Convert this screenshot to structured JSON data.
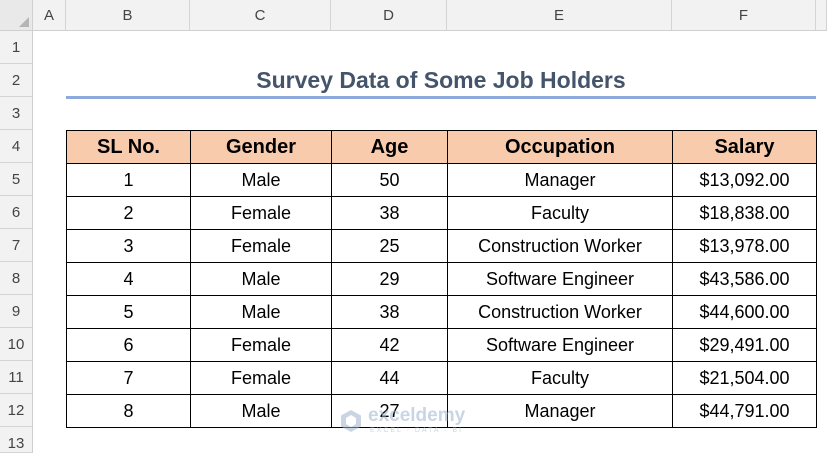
{
  "columns": [
    "A",
    "B",
    "C",
    "D",
    "E",
    "F"
  ],
  "rows": [
    "1",
    "2",
    "3",
    "4",
    "5",
    "6",
    "7",
    "8",
    "9",
    "10",
    "11",
    "12",
    "13"
  ],
  "title": "Survey Data of Some Job Holders",
  "table": {
    "headers": [
      "SL No.",
      "Gender",
      "Age",
      "Occupation",
      "Salary"
    ],
    "rows": [
      [
        "1",
        "Male",
        "50",
        "Manager",
        "$13,092.00"
      ],
      [
        "2",
        "Female",
        "38",
        "Faculty",
        "$18,838.00"
      ],
      [
        "3",
        "Female",
        "25",
        "Construction Worker",
        "$13,978.00"
      ],
      [
        "4",
        "Male",
        "29",
        "Software Engineer",
        "$43,586.00"
      ],
      [
        "5",
        "Male",
        "38",
        "Construction Worker",
        "$44,600.00"
      ],
      [
        "6",
        "Female",
        "42",
        "Software Engineer",
        "$29,491.00"
      ],
      [
        "7",
        "Female",
        "44",
        "Faculty",
        "$21,504.00"
      ],
      [
        "8",
        "Male",
        "27",
        "Manager",
        "$44,791.00"
      ]
    ]
  },
  "watermark": {
    "name": "exceldemy",
    "tagline": "EXCEL · DATA · BI"
  },
  "colors": {
    "header_fill": "#f8cbad",
    "title_text": "#44546a",
    "title_underline": "#8ea9db"
  }
}
